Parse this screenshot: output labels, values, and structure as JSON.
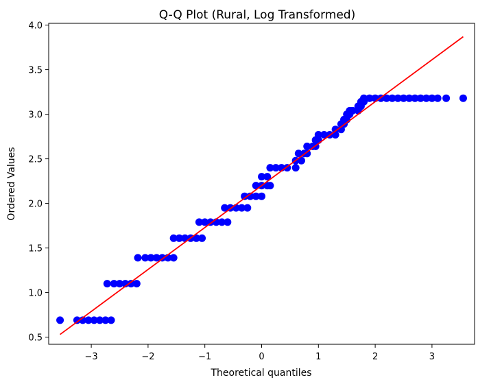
{
  "chart_data": {
    "type": "scatter",
    "title": "Q-Q Plot (Rural, Log Transformed)",
    "xlabel": "Theoretical quantiles",
    "ylabel": "Ordered Values",
    "xlim": [
      -3.75,
      3.75
    ],
    "ylim": [
      0.42,
      4.02
    ],
    "xticks": [
      -3,
      -2,
      -1,
      0,
      1,
      2,
      3
    ],
    "xtick_labels": [
      "−3",
      "−2",
      "−1",
      "0",
      "1",
      "2",
      "3"
    ],
    "yticks": [
      0.5,
      1.0,
      1.5,
      2.0,
      2.5,
      3.0,
      3.5,
      4.0
    ],
    "ytick_labels": [
      "0.5",
      "1.0",
      "1.5",
      "2.0",
      "2.5",
      "3.0",
      "3.5",
      "4.0"
    ],
    "grid": false,
    "series": [
      {
        "kind": "points",
        "color": "#0000ff",
        "points": [
          [
            -3.55,
            0.69
          ],
          [
            -3.25,
            0.69
          ],
          [
            -3.15,
            0.69
          ],
          [
            -3.05,
            0.69
          ],
          [
            -2.95,
            0.69
          ],
          [
            -2.85,
            0.69
          ],
          [
            -2.75,
            0.69
          ],
          [
            -2.65,
            0.69
          ],
          [
            -2.72,
            1.1
          ],
          [
            -2.6,
            1.1
          ],
          [
            -2.5,
            1.1
          ],
          [
            -2.4,
            1.1
          ],
          [
            -2.3,
            1.1
          ],
          [
            -2.2,
            1.1
          ],
          [
            -2.18,
            1.39
          ],
          [
            -2.05,
            1.39
          ],
          [
            -1.95,
            1.39
          ],
          [
            -1.85,
            1.39
          ],
          [
            -1.75,
            1.39
          ],
          [
            -1.65,
            1.39
          ],
          [
            -1.55,
            1.39
          ],
          [
            -1.55,
            1.61
          ],
          [
            -1.45,
            1.61
          ],
          [
            -1.35,
            1.61
          ],
          [
            -1.25,
            1.61
          ],
          [
            -1.15,
            1.61
          ],
          [
            -1.05,
            1.61
          ],
          [
            -1.1,
            1.79
          ],
          [
            -1.0,
            1.79
          ],
          [
            -0.9,
            1.79
          ],
          [
            -0.8,
            1.79
          ],
          [
            -0.7,
            1.79
          ],
          [
            -0.6,
            1.79
          ],
          [
            -0.65,
            1.95
          ],
          [
            -0.55,
            1.95
          ],
          [
            -0.45,
            1.95
          ],
          [
            -0.35,
            1.95
          ],
          [
            -0.25,
            1.95
          ],
          [
            -0.3,
            2.08
          ],
          [
            -0.2,
            2.08
          ],
          [
            -0.1,
            2.08
          ],
          [
            0.0,
            2.08
          ],
          [
            -0.1,
            2.2
          ],
          [
            0.0,
            2.2
          ],
          [
            0.1,
            2.2
          ],
          [
            0.15,
            2.2
          ],
          [
            0.0,
            2.3
          ],
          [
            0.1,
            2.3
          ],
          [
            0.15,
            2.4
          ],
          [
            0.25,
            2.4
          ],
          [
            0.35,
            2.4
          ],
          [
            0.45,
            2.4
          ],
          [
            0.6,
            2.4
          ],
          [
            0.6,
            2.48
          ],
          [
            0.7,
            2.48
          ],
          [
            0.65,
            2.56
          ],
          [
            0.75,
            2.56
          ],
          [
            0.8,
            2.56
          ],
          [
            0.8,
            2.64
          ],
          [
            0.9,
            2.64
          ],
          [
            0.95,
            2.64
          ],
          [
            0.95,
            2.71
          ],
          [
            1.0,
            2.71
          ],
          [
            1.0,
            2.77
          ],
          [
            1.1,
            2.77
          ],
          [
            1.2,
            2.77
          ],
          [
            1.3,
            2.77
          ],
          [
            1.3,
            2.83
          ],
          [
            1.4,
            2.83
          ],
          [
            1.4,
            2.89
          ],
          [
            1.45,
            2.89
          ],
          [
            1.45,
            2.94
          ],
          [
            1.5,
            2.94
          ],
          [
            1.5,
            3.0
          ],
          [
            1.55,
            3.0
          ],
          [
            1.55,
            3.04
          ],
          [
            1.6,
            3.04
          ],
          [
            1.7,
            3.04
          ],
          [
            1.7,
            3.09
          ],
          [
            1.75,
            3.09
          ],
          [
            1.75,
            3.14
          ],
          [
            1.8,
            3.14
          ],
          [
            1.8,
            3.18
          ],
          [
            1.9,
            3.18
          ],
          [
            2.0,
            3.18
          ],
          [
            2.1,
            3.18
          ],
          [
            2.2,
            3.18
          ],
          [
            2.3,
            3.18
          ],
          [
            2.4,
            3.18
          ],
          [
            2.5,
            3.18
          ],
          [
            2.6,
            3.18
          ],
          [
            2.7,
            3.18
          ],
          [
            2.8,
            3.18
          ],
          [
            2.9,
            3.18
          ],
          [
            3.0,
            3.18
          ],
          [
            3.1,
            3.18
          ],
          [
            3.25,
            3.18
          ],
          [
            3.55,
            3.18
          ]
        ]
      },
      {
        "kind": "line",
        "color": "#ff0000",
        "points": [
          [
            -3.55,
            0.53
          ],
          [
            3.55,
            3.87
          ]
        ]
      }
    ]
  }
}
